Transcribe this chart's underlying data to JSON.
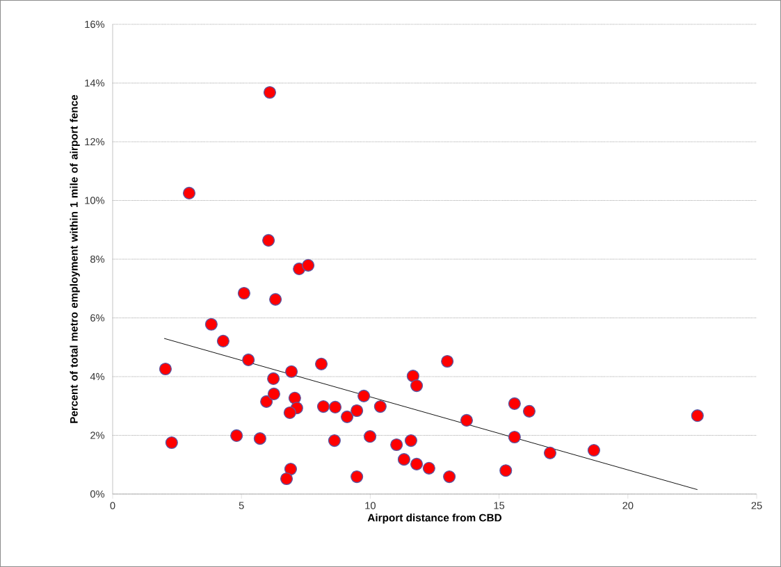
{
  "chart_data": {
    "type": "scatter",
    "xlabel": "Airport distance from CBD",
    "ylabel": "Percent of total metro employment within 1 mile of airport fence",
    "xlim": [
      0,
      25
    ],
    "xticks": [
      0,
      5,
      10,
      15,
      20,
      25
    ],
    "ylim": [
      0,
      16
    ],
    "yticks": [
      {
        "value": 0,
        "label": "0%"
      },
      {
        "value": 2,
        "label": "2%"
      },
      {
        "value": 4,
        "label": "4%"
      },
      {
        "value": 6,
        "label": "6%"
      },
      {
        "value": 8,
        "label": "8%"
      },
      {
        "value": 10,
        "label": "10%"
      },
      {
        "value": 12,
        "label": "12%"
      },
      {
        "value": 14,
        "label": "14%"
      },
      {
        "value": 16,
        "label": "16%"
      }
    ],
    "grid": "y",
    "series": [
      {
        "color": "#ff0000",
        "marker": "circle",
        "x": [
          2.05,
          2.29,
          2.97,
          3.83,
          4.29,
          4.81,
          5.1,
          5.27,
          5.72,
          6.05,
          6.1,
          6.32,
          5.97,
          6.24,
          6.26,
          6.94,
          7.07,
          7.15,
          6.88,
          6.91,
          6.75,
          7.24,
          7.59,
          8.1,
          8.18,
          8.64,
          8.61,
          9.1,
          9.48,
          9.48,
          9.75,
          9.99,
          10.39,
          11.02,
          11.31,
          11.58,
          11.66,
          11.8,
          11.8,
          12.28,
          12.99,
          13.07,
          13.74,
          15.26,
          15.6,
          15.6,
          16.17,
          16.98,
          18.68,
          22.7
        ],
        "values": [
          4.26,
          1.75,
          10.25,
          5.78,
          5.21,
          1.99,
          6.84,
          4.57,
          1.89,
          8.64,
          13.68,
          6.63,
          3.15,
          3.93,
          3.41,
          4.17,
          3.27,
          2.93,
          2.77,
          0.85,
          0.52,
          7.67,
          7.79,
          4.43,
          2.98,
          2.96,
          1.82,
          2.63,
          2.84,
          0.59,
          3.34,
          1.96,
          2.98,
          1.68,
          1.18,
          1.82,
          4.02,
          3.69,
          1.02,
          0.88,
          4.52,
          0.59,
          2.51,
          0.8,
          3.08,
          1.94,
          2.82,
          1.4,
          1.49,
          2.67
        ]
      },
      {
        "type": "line",
        "color": "#000000",
        "marker": "none",
        "x": [
          2.0,
          22.7
        ],
        "values": [
          5.3,
          0.15
        ]
      }
    ]
  }
}
